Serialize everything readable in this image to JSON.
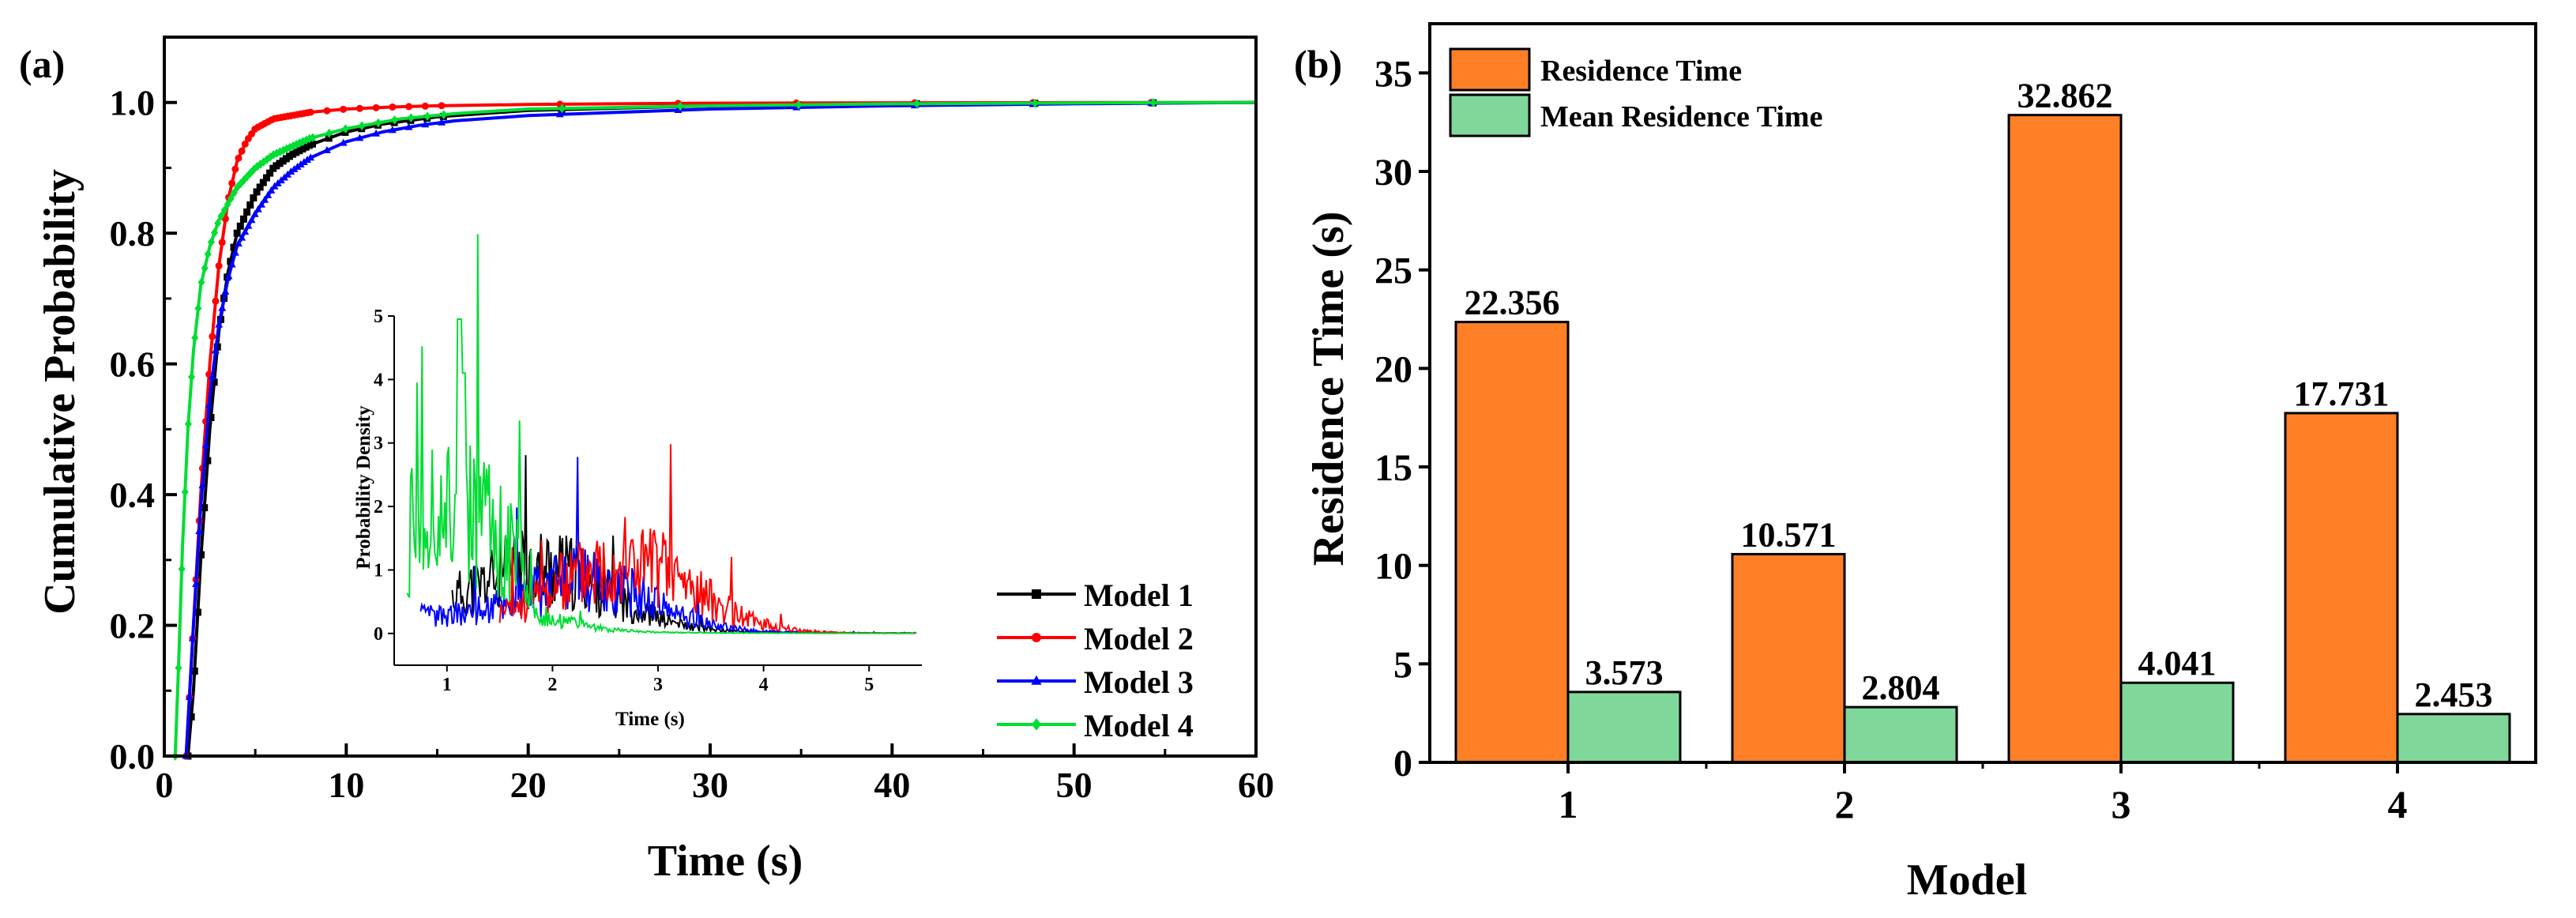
{
  "panel_a": {
    "label": "(a)",
    "inset": {
      "xlabel": "Time (s)",
      "ylabel": "Probability Density",
      "xlim": [
        0.5,
        5.5
      ],
      "ylim": [
        -0.5,
        5
      ],
      "xticks": [
        1,
        2,
        3,
        4,
        5
      ],
      "yticks": [
        0,
        1,
        2,
        3,
        4,
        5
      ]
    }
  },
  "panel_b": {
    "label": "(b)"
  },
  "chart_data": [
    {
      "type": "line",
      "title": "",
      "xlabel": "Time (s)",
      "ylabel": "Cumulative Probability",
      "xlim": [
        0,
        60
      ],
      "ylim": [
        0,
        1.1
      ],
      "xticks": [
        0,
        10,
        20,
        30,
        40,
        50,
        60
      ],
      "yticks": [
        0.0,
        0.2,
        0.4,
        0.6,
        0.8,
        1.0
      ],
      "ytick_labels": [
        "0.0",
        "0.2",
        "0.4",
        "0.6",
        "0.8",
        "1.0"
      ],
      "legend_position": "bottom-right",
      "series": [
        {
          "name": "Model 1",
          "color": "#000000",
          "marker": "square",
          "x": [
            1.3,
            1.6,
            2.0,
            2.5,
            3.0,
            3.5,
            4.0,
            5.0,
            6.0,
            7.0,
            8.0,
            10.0,
            12.0,
            15.0,
            20.0,
            30.0,
            40.0,
            50.0,
            60.0
          ],
          "y": [
            0.0,
            0.1,
            0.3,
            0.5,
            0.65,
            0.74,
            0.8,
            0.86,
            0.9,
            0.92,
            0.935,
            0.955,
            0.967,
            0.978,
            0.988,
            0.995,
            0.998,
            0.999,
            1.0
          ]
        },
        {
          "name": "Model 2",
          "color": "#ff0000",
          "marker": "circle",
          "x": [
            1.2,
            1.5,
            2.0,
            2.5,
            3.0,
            3.5,
            4.0,
            4.5,
            5.0,
            6.0,
            7.0,
            8.0,
            10.0,
            12.5,
            15.0,
            20.0,
            30.0,
            53.0,
            60.0
          ],
          "y": [
            0.0,
            0.15,
            0.4,
            0.6,
            0.75,
            0.85,
            0.91,
            0.94,
            0.96,
            0.975,
            0.98,
            0.985,
            0.99,
            0.993,
            0.995,
            0.997,
            0.999,
            1.0,
            1.0
          ]
        },
        {
          "name": "Model 3",
          "color": "#0000ff",
          "marker": "triangle",
          "x": [
            1.2,
            1.6,
            2.0,
            2.5,
            3.0,
            3.5,
            4.0,
            5.0,
            6.0,
            7.0,
            8.0,
            10.0,
            12.0,
            14.0,
            16.0,
            20.0,
            25.0,
            30.0,
            40.0,
            50.0,
            60.0
          ],
          "y": [
            0.0,
            0.2,
            0.38,
            0.55,
            0.66,
            0.73,
            0.78,
            0.83,
            0.87,
            0.895,
            0.915,
            0.94,
            0.955,
            0.965,
            0.972,
            0.98,
            0.985,
            0.99,
            0.995,
            0.998,
            1.0
          ]
        },
        {
          "name": "Model 4",
          "color": "#00dd33",
          "marker": "diamond",
          "x": [
            0.6,
            0.8,
            1.0,
            1.3,
            1.6,
            2.0,
            2.5,
            3.0,
            4.0,
            5.0,
            6.0,
            8.0,
            10.0,
            13.0,
            16.0,
            20.0,
            30.0,
            40.0,
            56.0,
            60.0
          ],
          "y": [
            0.0,
            0.15,
            0.32,
            0.5,
            0.62,
            0.72,
            0.78,
            0.82,
            0.87,
            0.9,
            0.92,
            0.945,
            0.96,
            0.975,
            0.983,
            0.99,
            0.995,
            0.998,
            1.0,
            1.0
          ]
        }
      ]
    },
    {
      "type": "bar",
      "title": "",
      "xlabel": "Model",
      "ylabel": "Residence Time (s)",
      "ylim": [
        0,
        37.5
      ],
      "yticks": [
        0,
        5,
        10,
        15,
        20,
        25,
        30,
        35
      ],
      "categories": [
        "1",
        "2",
        "3",
        "4"
      ],
      "legend_position": "top-left",
      "series": [
        {
          "name": "Residence Time",
          "color": "#ff7f27",
          "values": [
            22.356,
            10.571,
            32.862,
            17.731
          ],
          "labels": [
            "22.356",
            "10.571",
            "32.862",
            "17.731"
          ]
        },
        {
          "name": "Mean Residence Time",
          "color": "#7fd89a",
          "values": [
            3.573,
            2.804,
            4.041,
            2.453
          ],
          "labels": [
            "3.573",
            "2.804",
            "4.041",
            "2.453"
          ]
        }
      ]
    }
  ]
}
